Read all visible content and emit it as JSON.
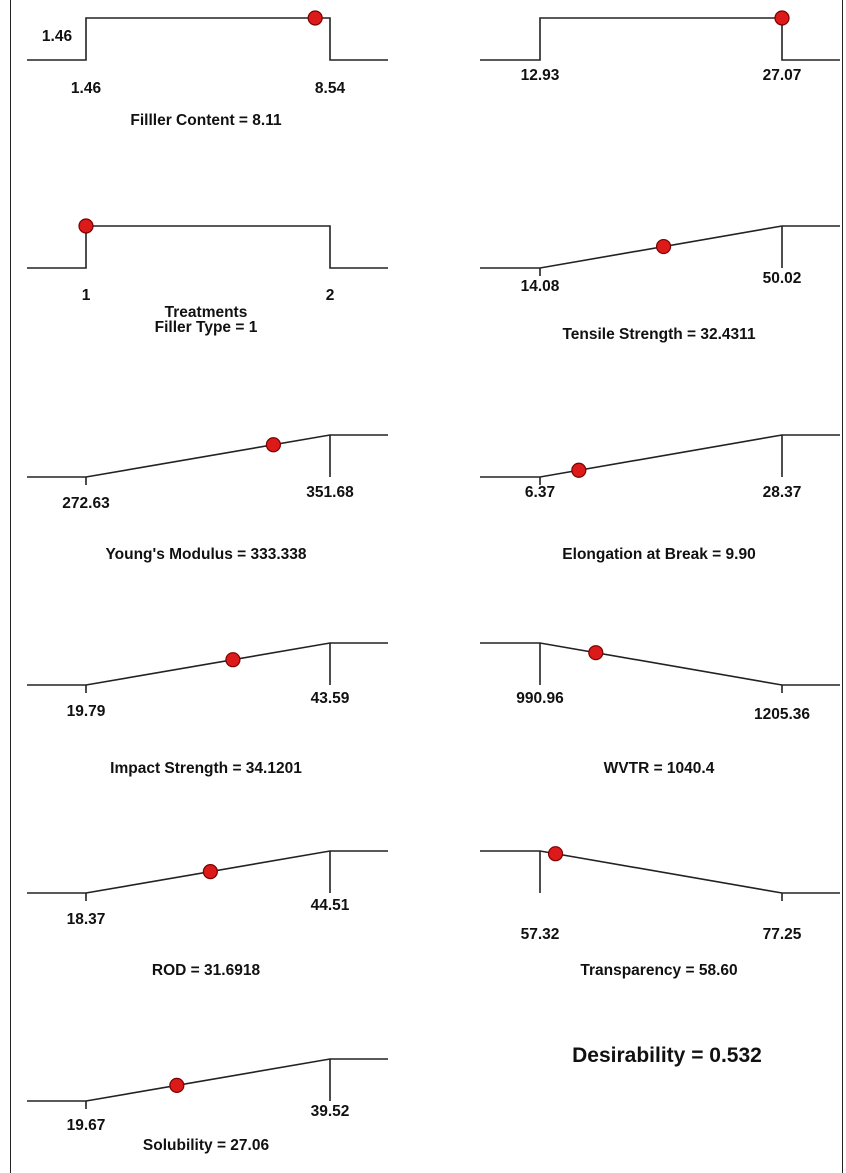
{
  "desirability_label": "Desirability = 0.532",
  "chart_data": [
    {
      "type": "line",
      "kind": "target",
      "title": "Filller Content = 8.11",
      "low_tick": "1.46",
      "high_tick": "8.54",
      "extra_label": "1.46",
      "low": 1.46,
      "high": 8.54,
      "value": 8.11
    },
    {
      "type": "line",
      "kind": "target",
      "title": "",
      "low_tick": "12.93",
      "high_tick": "27.07",
      "low": 12.93,
      "high": 27.07,
      "value": 27.07
    },
    {
      "type": "line",
      "kind": "target",
      "title": "Filler Type = 1",
      "title_line1": "Treatments",
      "low_tick": "1",
      "high_tick": "2",
      "low": 1,
      "high": 2,
      "value": 1
    },
    {
      "type": "line",
      "kind": "maximize",
      "title": "Tensile Strength = 32.4311",
      "low_tick": "14.08",
      "high_tick": "50.02",
      "low": 14.08,
      "high": 50.02,
      "value": 32.4311
    },
    {
      "type": "line",
      "kind": "maximize",
      "title": "Young's Modulus = 333.338",
      "low_tick": "272.63",
      "high_tick": "351.68",
      "low": 272.63,
      "high": 351.68,
      "value": 333.338
    },
    {
      "type": "line",
      "kind": "maximize",
      "title": "Elongation at Break = 9.90",
      "low_tick": "6.37",
      "high_tick": "28.37",
      "low": 6.37,
      "high": 28.37,
      "value": 9.9
    },
    {
      "type": "line",
      "kind": "maximize",
      "title": "Impact Strength = 34.1201",
      "low_tick": "19.79",
      "high_tick": "43.59",
      "low": 19.79,
      "high": 43.59,
      "value": 34.1201
    },
    {
      "type": "line",
      "kind": "minimize",
      "title": "WVTR = 1040.4",
      "low_tick": "990.96",
      "high_tick": "1205.36",
      "low": 990.96,
      "high": 1205.36,
      "value": 1040.4
    },
    {
      "type": "line",
      "kind": "maximize",
      "title": "ROD = 31.6918",
      "low_tick": "18.37",
      "high_tick": "44.51",
      "low": 18.37,
      "high": 44.51,
      "value": 31.6918
    },
    {
      "type": "line",
      "kind": "minimize",
      "title": "Transparency = 58.60",
      "low_tick": "57.32",
      "high_tick": "77.25",
      "low": 57.32,
      "high": 77.25,
      "value": 58.6
    },
    {
      "type": "line",
      "kind": "maximize",
      "title": "Solubility = 27.06",
      "low_tick": "19.67",
      "high_tick": "39.52",
      "low": 19.67,
      "high": 39.52,
      "value": 27.06
    }
  ],
  "colors": {
    "marker": "#dd1a1a",
    "marker_stroke": "#7a0000",
    "line": "#222222"
  }
}
